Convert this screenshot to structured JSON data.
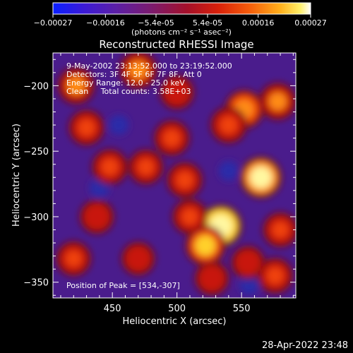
{
  "colorbar": {
    "ticks": [
      "-0.00027",
      "-0.00016",
      "-5.4e-05",
      "5.4e-05",
      "0.00016",
      "0.00027"
    ],
    "tick_values": [
      -0.00027,
      -0.00016,
      -5.4e-05,
      5.4e-05,
      0.00016,
      0.00027
    ],
    "range": [
      -0.00027,
      0.00027
    ],
    "unit_label": "(photons cm⁻² s⁻¹ asec⁻²)"
  },
  "title": "Reconstructed RHESSI Image",
  "annotations": {
    "time_range": "9-May-2002 23:13:52.000 to 23:19:52.000",
    "detectors": "Detectors: 3F 4F 5F 6F 7F 8F, Att 0",
    "energy": "Energy Range: 12.0 - 25.0 keV",
    "clean": "Clean     Total counts: 3.58E+03",
    "peak": "Position of Peak = [534,-307]"
  },
  "footer": {
    "timestamp": "28-Apr-2022 23:48"
  },
  "chart_data": {
    "type": "heatmap",
    "title": "Reconstructed RHESSI Image",
    "xlabel": "Heliocentric X (arcsec)",
    "ylabel": "Heliocentric Y (arcsec)",
    "xlim": [
      404,
      592
    ],
    "ylim": [
      -362,
      -175
    ],
    "xticks": [
      450,
      500,
      550
    ],
    "yticks": [
      -200,
      -250,
      -300,
      -350
    ],
    "colormap": "rainbow-like (blue-purple-red-orange-yellow-white)",
    "peak_position": [
      534,
      -307
    ],
    "blobs": [
      {
        "x": 534,
        "y": -307,
        "level": 1.0
      },
      {
        "x": 565,
        "y": -270,
        "level": 0.95
      },
      {
        "x": 522,
        "y": -322,
        "level": 0.85
      },
      {
        "x": 552,
        "y": -218,
        "level": 0.75
      },
      {
        "x": 578,
        "y": -212,
        "level": 0.65
      },
      {
        "x": 540,
        "y": -230,
        "level": 0.6
      },
      {
        "x": 496,
        "y": -240,
        "level": 0.55
      },
      {
        "x": 470,
        "y": -188,
        "level": 0.7
      },
      {
        "x": 422,
        "y": -200,
        "level": 0.65
      },
      {
        "x": 430,
        "y": -232,
        "level": 0.55
      },
      {
        "x": 448,
        "y": -262,
        "level": 0.55
      },
      {
        "x": 476,
        "y": -262,
        "level": 0.5
      },
      {
        "x": 506,
        "y": -272,
        "level": 0.55
      },
      {
        "x": 438,
        "y": -300,
        "level": 0.45
      },
      {
        "x": 510,
        "y": -300,
        "level": 0.5
      },
      {
        "x": 580,
        "y": -310,
        "level": 0.5
      },
      {
        "x": 576,
        "y": -345,
        "level": 0.55
      },
      {
        "x": 420,
        "y": -332,
        "level": 0.5
      },
      {
        "x": 470,
        "y": -332,
        "level": 0.4
      },
      {
        "x": 527,
        "y": -347,
        "level": 0.45
      },
      {
        "x": 500,
        "y": -205,
        "level": 0.45
      },
      {
        "x": 555,
        "y": -335,
        "level": 0.4
      }
    ],
    "dark_spots": [
      {
        "x": 556,
        "y": -352
      },
      {
        "x": 440,
        "y": -278
      },
      {
        "x": 455,
        "y": -230
      },
      {
        "x": 540,
        "y": -265
      }
    ]
  }
}
